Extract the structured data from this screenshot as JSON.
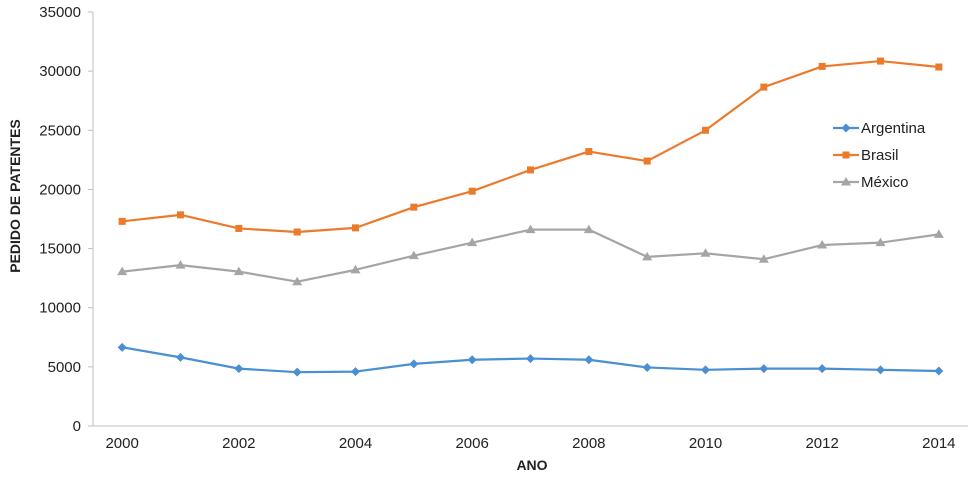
{
  "chart_data": {
    "type": "line",
    "title": "",
    "xlabel": "ANO",
    "ylabel": "PEDIDO DE PATENTES",
    "x": [
      2000,
      2001,
      2002,
      2003,
      2004,
      2005,
      2006,
      2007,
      2008,
      2009,
      2010,
      2011,
      2012,
      2013,
      2014
    ],
    "x_ticks": [
      2000,
      2002,
      2004,
      2006,
      2008,
      2010,
      2012,
      2014
    ],
    "xlim": [
      1999.5,
      2014.5
    ],
    "ylim": [
      0,
      35000
    ],
    "y_ticks": [
      0,
      5000,
      10000,
      15000,
      20000,
      25000,
      30000,
      35000
    ],
    "grid": false,
    "legend_position": "right",
    "series": [
      {
        "name": "Argentina",
        "color": "#4a8fd1",
        "marker": "diamond",
        "values": [
          6650,
          5800,
          4850,
          4550,
          4600,
          5250,
          5600,
          5700,
          5600,
          4950,
          4750,
          4850,
          4850,
          4750,
          4650
        ]
      },
      {
        "name": "Brasil",
        "color": "#ec7a2b",
        "marker": "square",
        "values": [
          17300,
          17850,
          16700,
          16400,
          16750,
          18500,
          19850,
          21650,
          23200,
          22400,
          25000,
          28650,
          30400,
          30850,
          30350
        ]
      },
      {
        "name": "México",
        "color": "#a5a5a5",
        "marker": "triangle",
        "values": [
          13050,
          13600,
          13050,
          12200,
          13200,
          14400,
          15500,
          16600,
          16600,
          14300,
          14600,
          14100,
          15300,
          15500,
          16200
        ]
      }
    ]
  }
}
